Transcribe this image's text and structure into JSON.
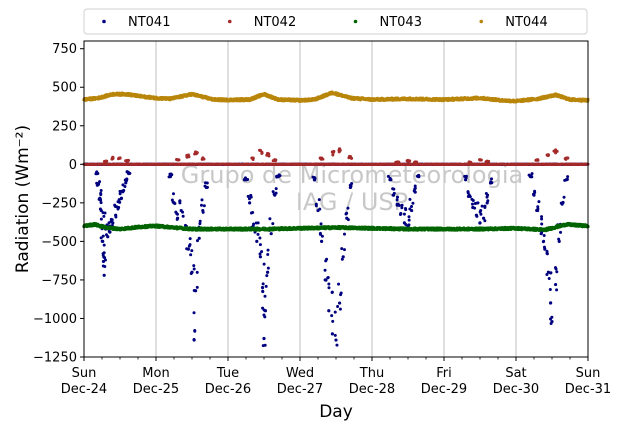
{
  "chart_data": {
    "type": "scatter",
    "xlabel": "Day",
    "ylabel": "Radiation (Wm⁻²)",
    "ylim": [
      -1250,
      800
    ],
    "yticks": [
      -1250,
      -1000,
      -750,
      -500,
      -250,
      0,
      250,
      500,
      750
    ],
    "ytick_labels": [
      "−1250",
      "−1000",
      "−750",
      "−500",
      "−250",
      "0",
      "250",
      "500",
      "750"
    ],
    "xlim": [
      0,
      7
    ],
    "xticks": [
      {
        "x": 0,
        "day": "Sun",
        "date": "Dec-24"
      },
      {
        "x": 1,
        "day": "Mon",
        "date": "Dec-25"
      },
      {
        "x": 2,
        "day": "Tue",
        "date": "Dec-26"
      },
      {
        "x": 3,
        "day": "Wed",
        "date": "Dec-27"
      },
      {
        "x": 4,
        "day": "Thu",
        "date": "Dec-28"
      },
      {
        "x": 5,
        "day": "Fri",
        "date": "Dec-29"
      },
      {
        "x": 6,
        "day": "Sat",
        "date": "Dec-30"
      },
      {
        "x": 7,
        "day": "Sun",
        "date": "Dec-31"
      }
    ],
    "grid": "x",
    "legend_position": "top, outside plot",
    "watermark": [
      "Grupo de Micrometeorologia",
      "IAG / USP"
    ],
    "series": [
      {
        "name": "NT041",
        "color": "#00007f",
        "baseline": 0,
        "daytime_points": [
          {
            "x": 0.18,
            "y": -60
          },
          {
            "x": 0.2,
            "y": -130
          },
          {
            "x": 0.22,
            "y": -220
          },
          {
            "x": 0.24,
            "y": -300
          },
          {
            "x": 0.25,
            "y": -400
          },
          {
            "x": 0.26,
            "y": -500
          },
          {
            "x": 0.27,
            "y": -630
          },
          {
            "x": 0.28,
            "y": -720
          },
          {
            "x": 0.3,
            "y": -420
          },
          {
            "x": 0.33,
            "y": -470
          },
          {
            "x": 0.36,
            "y": -440
          },
          {
            "x": 0.4,
            "y": -380
          },
          {
            "x": 0.44,
            "y": -330
          },
          {
            "x": 0.48,
            "y": -280
          },
          {
            "x": 0.52,
            "y": -220
          },
          {
            "x": 0.55,
            "y": -170
          },
          {
            "x": 0.58,
            "y": -120
          },
          {
            "x": 0.62,
            "y": -60
          },
          {
            "x": 1.2,
            "y": -80
          },
          {
            "x": 1.25,
            "y": -250
          },
          {
            "x": 1.3,
            "y": -350
          },
          {
            "x": 1.35,
            "y": -300
          },
          {
            "x": 1.4,
            "y": -420
          },
          {
            "x": 1.45,
            "y": -550
          },
          {
            "x": 1.5,
            "y": -700
          },
          {
            "x": 1.53,
            "y": -1140
          },
          {
            "x": 1.55,
            "y": -820
          },
          {
            "x": 1.6,
            "y": -480
          },
          {
            "x": 1.65,
            "y": -300
          },
          {
            "x": 1.7,
            "y": -150
          },
          {
            "x": 2.25,
            "y": -100
          },
          {
            "x": 2.3,
            "y": -250
          },
          {
            "x": 2.35,
            "y": -400
          },
          {
            "x": 2.4,
            "y": -500
          },
          {
            "x": 2.45,
            "y": -600
          },
          {
            "x": 2.48,
            "y": -800
          },
          {
            "x": 2.5,
            "y": -1130
          },
          {
            "x": 2.52,
            "y": -950
          },
          {
            "x": 2.55,
            "y": -700
          },
          {
            "x": 2.6,
            "y": -450
          },
          {
            "x": 2.65,
            "y": -200
          },
          {
            "x": 2.7,
            "y": -80
          },
          {
            "x": 3.2,
            "y": -100
          },
          {
            "x": 3.25,
            "y": -300
          },
          {
            "x": 3.3,
            "y": -500
          },
          {
            "x": 3.35,
            "y": -750
          },
          {
            "x": 3.4,
            "y": -950
          },
          {
            "x": 3.45,
            "y": -1100
          },
          {
            "x": 3.5,
            "y": -1140
          },
          {
            "x": 3.55,
            "y": -900
          },
          {
            "x": 3.6,
            "y": -600
          },
          {
            "x": 3.65,
            "y": -350
          },
          {
            "x": 3.7,
            "y": -150
          },
          {
            "x": 4.25,
            "y": -100
          },
          {
            "x": 4.3,
            "y": -200
          },
          {
            "x": 4.35,
            "y": -260
          },
          {
            "x": 4.4,
            "y": -320
          },
          {
            "x": 4.45,
            "y": -380
          },
          {
            "x": 4.5,
            "y": -400
          },
          {
            "x": 4.55,
            "y": -300
          },
          {
            "x": 4.6,
            "y": -180
          },
          {
            "x": 4.65,
            "y": -80
          },
          {
            "x": 5.3,
            "y": -100
          },
          {
            "x": 5.35,
            "y": -200
          },
          {
            "x": 5.4,
            "y": -280
          },
          {
            "x": 5.45,
            "y": -330
          },
          {
            "x": 5.5,
            "y": -380
          },
          {
            "x": 5.55,
            "y": -350
          },
          {
            "x": 5.6,
            "y": -250
          },
          {
            "x": 5.65,
            "y": -120
          },
          {
            "x": 6.2,
            "y": -80
          },
          {
            "x": 6.25,
            "y": -200
          },
          {
            "x": 6.3,
            "y": -300
          },
          {
            "x": 6.35,
            "y": -450
          },
          {
            "x": 6.4,
            "y": -550
          },
          {
            "x": 6.45,
            "y": -700
          },
          {
            "x": 6.48,
            "y": -900
          },
          {
            "x": 6.5,
            "y": -1020
          },
          {
            "x": 6.55,
            "y": -780
          },
          {
            "x": 6.6,
            "y": -500
          },
          {
            "x": 6.65,
            "y": -250
          },
          {
            "x": 6.7,
            "y": -100
          }
        ]
      },
      {
        "name": "NT042",
        "color": "#a52a2a",
        "baseline": 0,
        "daytime_points": [
          {
            "x": 0.3,
            "y": 20
          },
          {
            "x": 0.4,
            "y": 45
          },
          {
            "x": 0.5,
            "y": 40
          },
          {
            "x": 0.6,
            "y": 25
          },
          {
            "x": 1.3,
            "y": 30
          },
          {
            "x": 1.45,
            "y": 60
          },
          {
            "x": 1.55,
            "y": 80
          },
          {
            "x": 1.65,
            "y": 40
          },
          {
            "x": 2.35,
            "y": 40
          },
          {
            "x": 2.45,
            "y": 90
          },
          {
            "x": 2.55,
            "y": 70
          },
          {
            "x": 2.65,
            "y": 30
          },
          {
            "x": 3.3,
            "y": 40
          },
          {
            "x": 3.45,
            "y": 80
          },
          {
            "x": 3.55,
            "y": 100
          },
          {
            "x": 3.7,
            "y": 50
          },
          {
            "x": 4.35,
            "y": 15
          },
          {
            "x": 4.5,
            "y": 25
          },
          {
            "x": 4.6,
            "y": 15
          },
          {
            "x": 5.35,
            "y": 15
          },
          {
            "x": 5.5,
            "y": 30
          },
          {
            "x": 5.6,
            "y": 20
          },
          {
            "x": 6.3,
            "y": 30
          },
          {
            "x": 6.45,
            "y": 60
          },
          {
            "x": 6.55,
            "y": 90
          },
          {
            "x": 6.7,
            "y": 40
          }
        ]
      },
      {
        "name": "NT043",
        "color": "#006400",
        "points": [
          {
            "x": 0,
            "y": -400
          },
          {
            "x": 0.15,
            "y": -390
          },
          {
            "x": 0.3,
            "y": -410
          },
          {
            "x": 0.5,
            "y": -420
          },
          {
            "x": 0.8,
            "y": -405
          },
          {
            "x": 1.0,
            "y": -400
          },
          {
            "x": 1.5,
            "y": -420
          },
          {
            "x": 2.0,
            "y": -420
          },
          {
            "x": 2.5,
            "y": -420
          },
          {
            "x": 3.0,
            "y": -415
          },
          {
            "x": 3.5,
            "y": -410
          },
          {
            "x": 4.0,
            "y": -415
          },
          {
            "x": 4.5,
            "y": -420
          },
          {
            "x": 5.0,
            "y": -420
          },
          {
            "x": 5.5,
            "y": -420
          },
          {
            "x": 6.0,
            "y": -415
          },
          {
            "x": 6.4,
            "y": -425
          },
          {
            "x": 6.7,
            "y": -390
          },
          {
            "x": 7.0,
            "y": -400
          }
        ]
      },
      {
        "name": "NT044",
        "color": "#b8860b",
        "points": [
          {
            "x": 0,
            "y": 420
          },
          {
            "x": 0.2,
            "y": 430
          },
          {
            "x": 0.4,
            "y": 455
          },
          {
            "x": 0.6,
            "y": 455
          },
          {
            "x": 0.8,
            "y": 440
          },
          {
            "x": 1.0,
            "y": 430
          },
          {
            "x": 1.2,
            "y": 425
          },
          {
            "x": 1.5,
            "y": 455
          },
          {
            "x": 1.8,
            "y": 420
          },
          {
            "x": 2.0,
            "y": 418
          },
          {
            "x": 2.3,
            "y": 420
          },
          {
            "x": 2.5,
            "y": 455
          },
          {
            "x": 2.7,
            "y": 420
          },
          {
            "x": 3.0,
            "y": 415
          },
          {
            "x": 3.2,
            "y": 420
          },
          {
            "x": 3.45,
            "y": 465
          },
          {
            "x": 3.7,
            "y": 430
          },
          {
            "x": 4.0,
            "y": 420
          },
          {
            "x": 4.5,
            "y": 425
          },
          {
            "x": 5.0,
            "y": 420
          },
          {
            "x": 5.5,
            "y": 430
          },
          {
            "x": 5.8,
            "y": 415
          },
          {
            "x": 6.0,
            "y": 410
          },
          {
            "x": 6.3,
            "y": 425
          },
          {
            "x": 6.55,
            "y": 450
          },
          {
            "x": 6.75,
            "y": 420
          },
          {
            "x": 7.0,
            "y": 415
          }
        ]
      }
    ]
  }
}
